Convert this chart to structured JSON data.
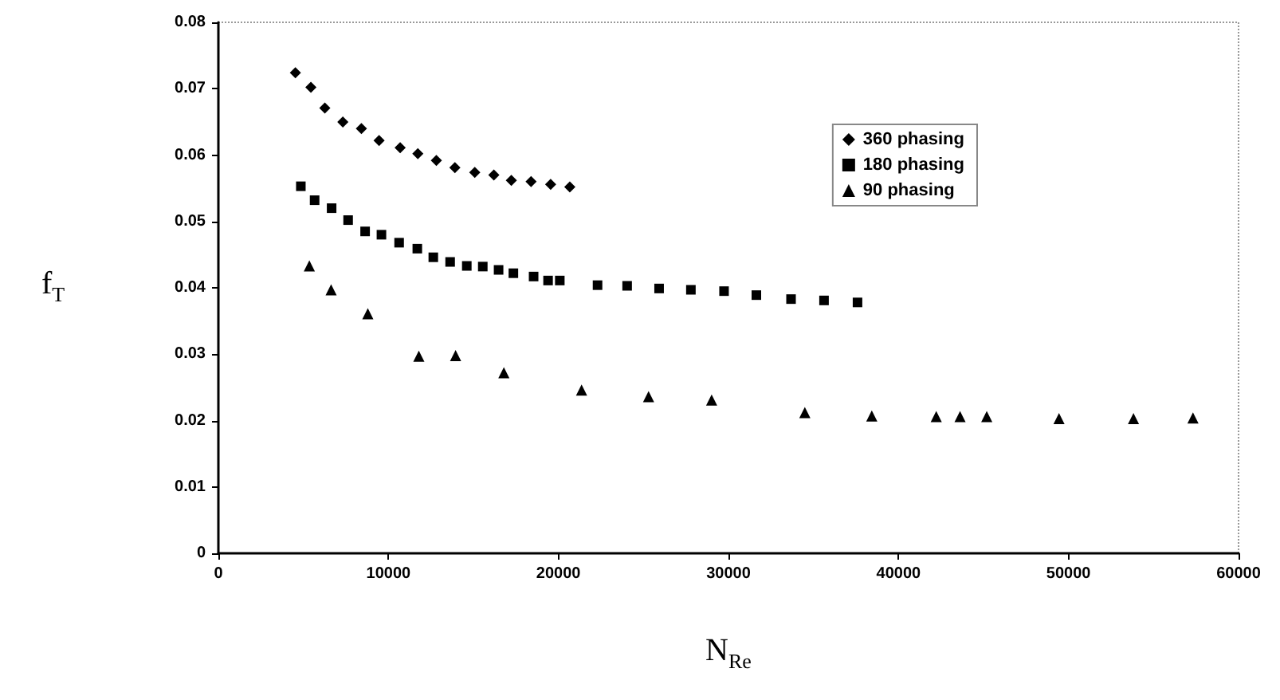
{
  "chart_data": {
    "type": "scatter",
    "xlabel": "N$_{Re}$",
    "ylabel": "f$_{T}$",
    "xlim": [
      0,
      60000
    ],
    "xticks": [
      0,
      10000,
      20000,
      30000,
      40000,
      50000,
      60000
    ],
    "ylim": [
      0,
      0.08
    ],
    "yticks": [
      0,
      0.01,
      0.02,
      0.03,
      0.04,
      0.05,
      0.06,
      0.07,
      0.08
    ],
    "grid": false,
    "legend": "top right",
    "series": [
      {
        "name": "360 phasing",
        "color": "#000000",
        "marker": "diamond",
        "x": [
          4530,
          5440,
          6260,
          7320,
          8410,
          9450,
          10690,
          11730,
          12820,
          13910,
          15080,
          16200,
          17230,
          18390,
          19540,
          20670
        ],
        "values": [
          0.0724,
          0.0702,
          0.0671,
          0.065,
          0.064,
          0.0622,
          0.0611,
          0.0602,
          0.0592,
          0.0581,
          0.0574,
          0.057,
          0.0562,
          0.056,
          0.0556,
          0.0552
        ]
      },
      {
        "name": "180 phasing",
        "color": "#000000",
        "marker": "square",
        "x": [
          4850,
          5660,
          6660,
          7630,
          8630,
          9590,
          10630,
          11700,
          12640,
          13630,
          14610,
          15550,
          16480,
          17350,
          18540,
          19390,
          20080,
          22300,
          24040,
          25920,
          27790,
          29740,
          31640,
          33680,
          35620,
          37590
        ],
        "values": [
          0.0553,
          0.0532,
          0.052,
          0.0502,
          0.0485,
          0.048,
          0.0468,
          0.0459,
          0.0446,
          0.0439,
          0.0433,
          0.0432,
          0.0427,
          0.0422,
          0.0417,
          0.0411,
          0.0411,
          0.0404,
          0.0403,
          0.0399,
          0.0397,
          0.0395,
          0.0389,
          0.0383,
          0.0381,
          0.0378
        ]
      },
      {
        "name": "90 phasing",
        "color": "#000000",
        "marker": "triangle",
        "x": [
          5350,
          6630,
          8790,
          11790,
          13950,
          16790,
          21360,
          25300,
          29010,
          34490,
          38430,
          42220,
          43620,
          45190,
          49440,
          53820,
          57320
        ],
        "values": [
          0.0433,
          0.0397,
          0.0361,
          0.0297,
          0.0298,
          0.0272,
          0.0246,
          0.0236,
          0.0231,
          0.0212,
          0.0207,
          0.0206,
          0.0206,
          0.0206,
          0.0203,
          0.0203,
          0.0204
        ]
      }
    ]
  }
}
